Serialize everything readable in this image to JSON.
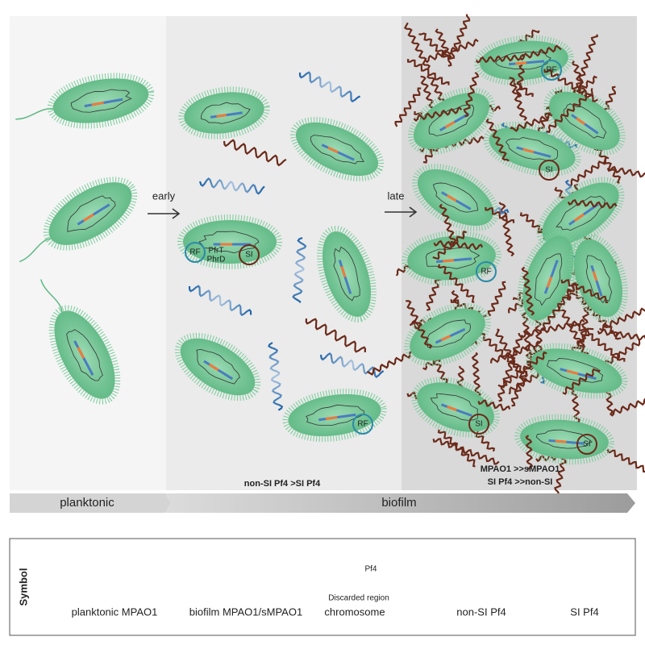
{
  "transitions": [
    "early",
    "late"
  ],
  "early_panel": {
    "cell_labels": [
      "PfrT",
      "PhrD",
      "RF",
      "SI",
      "RF"
    ],
    "summary": "non-SI Pf4 >SI Pf4"
  },
  "late_panel": {
    "cell_labels": [
      "RF",
      "SI",
      "RF",
      "SI",
      "SI"
    ],
    "summary": [
      "MPAO1 >>sMPAO1",
      "SI Pf4 >>non-SI"
    ]
  },
  "stages": [
    "planktonic",
    "biofilm"
  ],
  "legend": {
    "title": "Symbol",
    "items": [
      {
        "label": "planktonic MPAO1"
      },
      {
        "label": "biofilm MPAO1/sMPAO1"
      },
      {
        "label": "chromosome",
        "annotations": [
          "Pf4",
          "Discarded region"
        ]
      },
      {
        "label": "non-SI Pf4"
      },
      {
        "label": "SI Pf4"
      }
    ]
  }
}
